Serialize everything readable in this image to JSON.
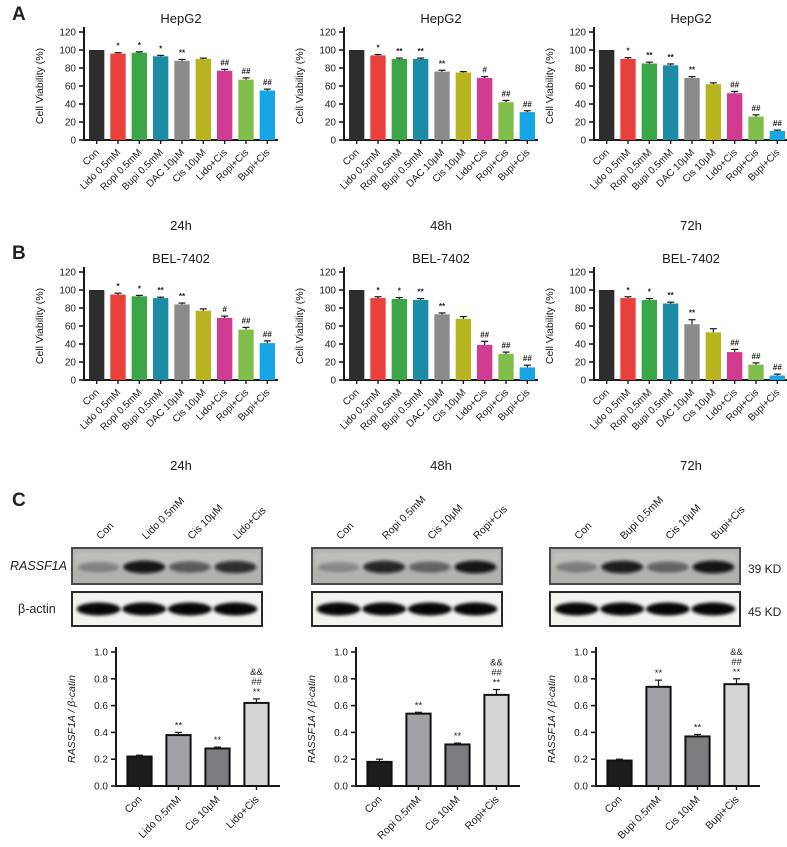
{
  "figure": {
    "panel_a_label": "A",
    "panel_b_label": "B",
    "panel_c_label": "C"
  },
  "palette": {
    "axis_color": "#1a1a1a",
    "viability_bar_colors": [
      "#2d2d2d",
      "#e8403a",
      "#3aa648",
      "#1b8ba6",
      "#8b8b8b",
      "#b8b41f",
      "#d13b92",
      "#7fbe4b",
      "#18a5e6"
    ],
    "ratio_bar_colors": [
      "#1c1c1c",
      "#a2a2a6",
      "#7d7d81",
      "#d5d5d7"
    ],
    "ratio_bar_stroke": "#111111",
    "rassf1a_box_fill": "#b2b1ae",
    "actin_box_fill": "#f4f3f0"
  },
  "chart_data": [
    {
      "id": "a1",
      "kind": "viability",
      "type": "bar",
      "title": "HepG2",
      "xlabel": "24h",
      "ylabel": "Cell Viability (%)",
      "ylim": [
        0,
        120
      ],
      "yticks": [
        0,
        20,
        40,
        60,
        80,
        100,
        120
      ],
      "categories": [
        "Con",
        "Lido 0.5mM",
        "Ropi 0.5mM",
        "Bupi 0.5mM",
        "DAC 10μM",
        "Cis 10μM",
        "Lido+Cis",
        "Ropi+Cis",
        "Bupi+Cis"
      ],
      "values": [
        100,
        96,
        97,
        93,
        88,
        90,
        77,
        67,
        55
      ],
      "errors": [
        0,
        1,
        1,
        1,
        1.5,
        1,
        1.5,
        2,
        1.5
      ],
      "annotations": [
        "",
        "*",
        "*",
        "*",
        "**",
        "",
        "##",
        "##",
        "##"
      ]
    },
    {
      "id": "a2",
      "kind": "viability",
      "type": "bar",
      "title": "HepG2",
      "xlabel": "48h",
      "ylabel": "Cell Viability (%)",
      "ylim": [
        0,
        120
      ],
      "yticks": [
        0,
        20,
        40,
        60,
        80,
        100,
        120
      ],
      "categories": [
        "Con",
        "Lido 0.5mM",
        "Ropi 0.5mM",
        "Bupi 0.5mM",
        "DAC 10μM",
        "Cis 10μM",
        "Lido+Cis",
        "Ropi+Cis",
        "Bupi+Cis"
      ],
      "values": [
        100,
        94,
        90,
        90,
        76,
        75,
        69,
        42,
        31
      ],
      "errors": [
        0,
        1,
        1,
        1,
        1.5,
        1,
        1.5,
        2,
        1.5
      ],
      "annotations": [
        "",
        "*",
        "**",
        "**",
        "**",
        "",
        "#",
        "##",
        "##"
      ]
    },
    {
      "id": "a3",
      "kind": "viability",
      "type": "bar",
      "title": "HepG2",
      "xlabel": "72h",
      "ylabel": "Cell Viability (%)",
      "ylim": [
        0,
        120
      ],
      "yticks": [
        0,
        20,
        40,
        60,
        80,
        100,
        120
      ],
      "categories": [
        "Con",
        "Lido 0.5mM",
        "Ropi 0.5mM",
        "Bupi 0.5mM",
        "DAC 10μM",
        "Cis 10μM",
        "Lido+Cis",
        "Ropi+Cis",
        "Bupi+Cis"
      ],
      "values": [
        100,
        90,
        85,
        83,
        69,
        62,
        52,
        26,
        10
      ],
      "errors": [
        0,
        1.5,
        1.5,
        1.5,
        1.5,
        1.5,
        2,
        2,
        1
      ],
      "annotations": [
        "",
        "*",
        "**",
        "**",
        "**",
        "",
        "##",
        "##",
        "##"
      ]
    },
    {
      "id": "b1",
      "kind": "viability",
      "type": "bar",
      "title": "BEL-7402",
      "xlabel": "24h",
      "ylabel": "Cell Viability (%)",
      "ylim": [
        0,
        120
      ],
      "yticks": [
        0,
        20,
        40,
        60,
        80,
        100,
        120
      ],
      "categories": [
        "Con",
        "Lido 0.5mM",
        "Ropi 0.5mM",
        "Bupi 0.5mM",
        "DAC 10μM",
        "Cis 10μM",
        "Lido+Cis",
        "Ropi+Cis",
        "Bupi+Cis"
      ],
      "values": [
        100,
        95,
        93,
        91,
        84,
        77,
        69,
        56,
        41
      ],
      "errors": [
        0,
        1.5,
        1,
        1,
        1.5,
        2,
        2,
        2.5,
        2.5
      ],
      "annotations": [
        "",
        "*",
        "*",
        "**",
        "**",
        "",
        "#",
        "##",
        "##"
      ]
    },
    {
      "id": "b2",
      "kind": "viability",
      "type": "bar",
      "title": "BEL-7402",
      "xlabel": "48h",
      "ylabel": "Cell Viability (%)",
      "ylim": [
        0,
        120
      ],
      "yticks": [
        0,
        20,
        40,
        60,
        80,
        100,
        120
      ],
      "categories": [
        "Con",
        "Lido 0.5mM",
        "Ropi 0.5mM",
        "Bupi 0.5mM",
        "DAC 10μM",
        "Cis 10μM",
        "Lido+Cis",
        "Ropi+Cis",
        "Bupi+Cis"
      ],
      "values": [
        100,
        91,
        90,
        89,
        73,
        68,
        39,
        29,
        14
      ],
      "errors": [
        0,
        1.5,
        1.5,
        1.5,
        1.5,
        2.5,
        4,
        2,
        2.5
      ],
      "annotations": [
        "",
        "*",
        "*",
        "**",
        "**",
        "",
        "##",
        "##",
        "##"
      ]
    },
    {
      "id": "b3",
      "kind": "viability",
      "type": "bar",
      "title": "BEL-7402",
      "xlabel": "72h",
      "ylabel": "Cell Viability (%)",
      "ylim": [
        0,
        120
      ],
      "yticks": [
        0,
        20,
        40,
        60,
        80,
        100,
        120
      ],
      "categories": [
        "Con",
        "Lido 0.5mM",
        "Ropi 0.5mM",
        "Bupi 0.5mM",
        "DAC 10μM",
        "Cis 10μM",
        "Lido+Cis",
        "Ropi+Cis",
        "Bupi+Cis"
      ],
      "values": [
        100,
        91,
        89,
        85,
        62,
        53,
        31,
        17,
        5
      ],
      "errors": [
        0,
        1.5,
        1.5,
        1.5,
        5,
        4,
        3,
        2,
        1.5
      ],
      "annotations": [
        "",
        "*",
        "*",
        "**",
        "**",
        "",
        "##",
        "##",
        "##"
      ]
    },
    {
      "id": "c1",
      "kind": "ratio",
      "type": "bar",
      "title": "",
      "xlabel": "",
      "ylabel": "RASSF1A / β-catin",
      "ylim": [
        0,
        1.0
      ],
      "yticks": [
        0,
        0.2,
        0.4,
        0.6,
        0.8,
        1.0
      ],
      "categories": [
        "Con",
        "Lido 0.5mM",
        "Cis 10μM",
        "Lido+Cis"
      ],
      "values": [
        0.22,
        0.38,
        0.28,
        0.62
      ],
      "errors": [
        0.01,
        0.02,
        0.01,
        0.03
      ],
      "annotations": [
        [],
        [
          "**"
        ],
        [
          "**"
        ],
        [
          "&&",
          "##",
          "**"
        ]
      ]
    },
    {
      "id": "c2",
      "kind": "ratio",
      "type": "bar",
      "title": "",
      "xlabel": "",
      "ylabel": "RASSF1A / β-catin",
      "ylim": [
        0,
        1.0
      ],
      "yticks": [
        0,
        0.2,
        0.4,
        0.6,
        0.8,
        1.0
      ],
      "categories": [
        "Con",
        "Ropi 0.5mM",
        "Cis 10μM",
        "Ropi+Cis"
      ],
      "values": [
        0.18,
        0.54,
        0.31,
        0.68
      ],
      "errors": [
        0.02,
        0.01,
        0.01,
        0.04
      ],
      "annotations": [
        [],
        [
          "**"
        ],
        [
          "**"
        ],
        [
          "&&",
          "##",
          "**"
        ]
      ]
    },
    {
      "id": "c3",
      "kind": "ratio",
      "type": "bar",
      "title": "",
      "xlabel": "",
      "ylabel": "RASSF1A / β-catin",
      "ylim": [
        0,
        1.0
      ],
      "yticks": [
        0,
        0.2,
        0.4,
        0.6,
        0.8,
        1.0
      ],
      "categories": [
        "Con",
        "Bupi 0.5mM",
        "Cis 10μM",
        "Bupi+Cis"
      ],
      "values": [
        0.19,
        0.74,
        0.37,
        0.76
      ],
      "errors": [
        0.01,
        0.05,
        0.015,
        0.04
      ],
      "annotations": [
        [],
        [
          "**"
        ],
        [
          "**"
        ],
        [
          "&&",
          "##",
          "**"
        ]
      ]
    }
  ],
  "blots": {
    "row_labels": [
      "RASSF1A",
      "β-actin"
    ],
    "kd_labels": [
      "39 KD",
      "45 KD"
    ],
    "groups": [
      {
        "lanes": [
          "Con",
          "Lido 0.5mM",
          "Cis 10μM",
          "Lido+Cis"
        ],
        "rassf1a_intensity": [
          0.32,
          0.95,
          0.55,
          0.8
        ],
        "actin_intensity": [
          0.97,
          0.97,
          0.97,
          0.97
        ]
      },
      {
        "lanes": [
          "Con",
          "Ropi 0.5mM",
          "Cis 10μM",
          "Ropi+Cis"
        ],
        "rassf1a_intensity": [
          0.28,
          0.85,
          0.5,
          0.95
        ],
        "actin_intensity": [
          0.97,
          0.97,
          0.97,
          0.97
        ]
      },
      {
        "lanes": [
          "Con",
          "Bupi 0.5mM",
          "Cis 10μM",
          "Bupi+Cis"
        ],
        "rassf1a_intensity": [
          0.35,
          0.9,
          0.5,
          0.95
        ],
        "actin_intensity": [
          0.97,
          0.97,
          0.97,
          0.97
        ]
      }
    ]
  }
}
